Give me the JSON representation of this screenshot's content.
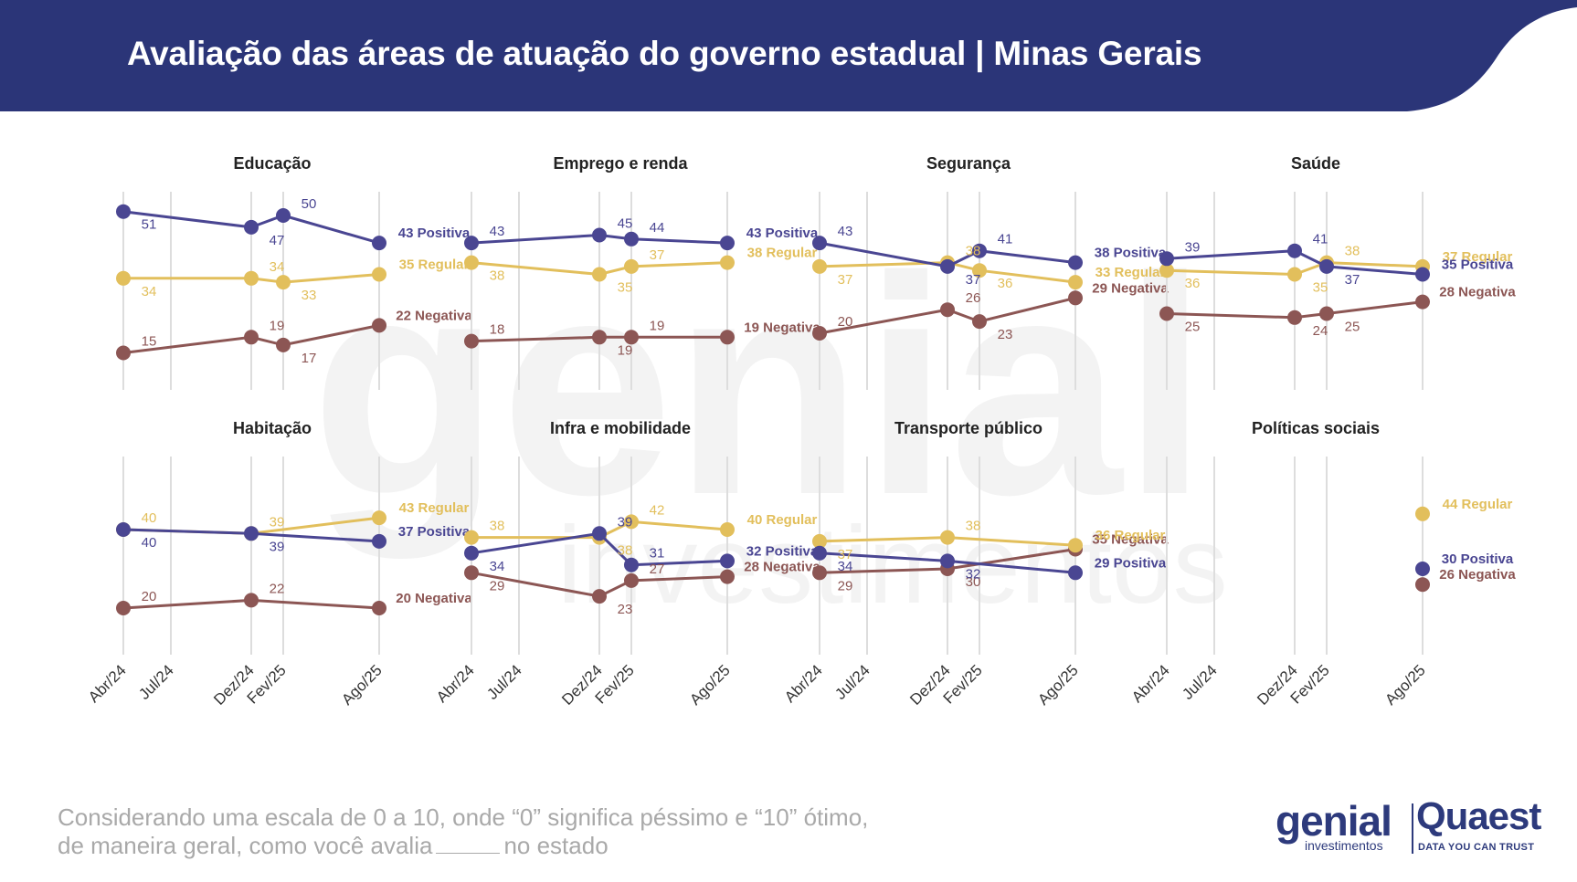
{
  "header": {
    "title": "Avaliação das áreas de atuação do governo estadual | Minas Gerais"
  },
  "footnote": {
    "line1": "Considerando uma escala de 0 a 10, onde “0” significa péssimo e “10” ótimo,",
    "line2_a": "de maneira geral, como você avalia",
    "line2_b": "no estado"
  },
  "logos": {
    "genial": "genial",
    "genial_sub": "investimentos",
    "quaest": "Quaest",
    "quaest_sub": "DATA YOU CAN TRUST"
  },
  "watermark": {
    "line1": "genial",
    "line2": "investimentos"
  },
  "colors": {
    "header_bg": "#2b3578",
    "positiva": "#4a4692",
    "regular": "#e2bf5c",
    "negativa": "#8c5654",
    "gridline": "#dddddd"
  },
  "chart_data": [
    {
      "type": "line",
      "title": "Educação",
      "x": [
        "Abr/24",
        "Jul/24",
        "Dez/24",
        "Fev/25",
        "Ago/25"
      ],
      "series": [
        {
          "name": "Positiva",
          "values": [
            51,
            null,
            47,
            50,
            43
          ]
        },
        {
          "name": "Regular",
          "values": [
            34,
            null,
            34,
            33,
            35
          ]
        },
        {
          "name": "Negativa",
          "values": [
            15,
            null,
            19,
            17,
            22
          ]
        }
      ]
    },
    {
      "type": "line",
      "title": "Emprego e renda",
      "x": [
        "Abr/24",
        "Jul/24",
        "Dez/24",
        "Fev/25",
        "Ago/25"
      ],
      "series": [
        {
          "name": "Positiva",
          "values": [
            43,
            null,
            45,
            44,
            43
          ]
        },
        {
          "name": "Regular",
          "values": [
            38,
            null,
            35,
            37,
            38
          ]
        },
        {
          "name": "Negativa",
          "values": [
            18,
            null,
            19,
            19,
            19
          ]
        }
      ]
    },
    {
      "type": "line",
      "title": "Segurança",
      "x": [
        "Abr/24",
        "Jul/24",
        "Dez/24",
        "Fev/25",
        "Ago/25"
      ],
      "series": [
        {
          "name": "Positiva",
          "values": [
            43,
            null,
            37,
            41,
            38
          ]
        },
        {
          "name": "Regular",
          "values": [
            37,
            null,
            38,
            36,
            33
          ]
        },
        {
          "name": "Negativa",
          "values": [
            20,
            null,
            26,
            23,
            29
          ]
        }
      ]
    },
    {
      "type": "line",
      "title": "Saúde",
      "x": [
        "Abr/24",
        "Jul/24",
        "Dez/24",
        "Fev/25",
        "Ago/25"
      ],
      "series": [
        {
          "name": "Positiva",
          "values": [
            39,
            null,
            41,
            37,
            35
          ]
        },
        {
          "name": "Regular",
          "values": [
            36,
            null,
            35,
            38,
            37
          ]
        },
        {
          "name": "Negativa",
          "values": [
            25,
            null,
            24,
            25,
            28
          ]
        }
      ]
    },
    {
      "type": "line",
      "title": "Habitação",
      "x": [
        "Abr/24",
        "Jul/24",
        "Dez/24",
        "Fev/25",
        "Ago/25"
      ],
      "series": [
        {
          "name": "Positiva",
          "values": [
            40,
            null,
            39,
            null,
            37
          ]
        },
        {
          "name": "Regular",
          "values": [
            40,
            null,
            39,
            null,
            43
          ]
        },
        {
          "name": "Negativa",
          "values": [
            20,
            null,
            22,
            null,
            20
          ]
        }
      ]
    },
    {
      "type": "line",
      "title": "Infra e mobilidade",
      "x": [
        "Abr/24",
        "Jul/24",
        "Dez/24",
        "Fev/25",
        "Ago/25"
      ],
      "series": [
        {
          "name": "Positiva",
          "values": [
            34,
            null,
            39,
            31,
            32
          ]
        },
        {
          "name": "Regular",
          "values": [
            38,
            null,
            38,
            42,
            40
          ]
        },
        {
          "name": "Negativa",
          "values": [
            29,
            null,
            23,
            27,
            28
          ]
        }
      ]
    },
    {
      "type": "line",
      "title": "Transporte público",
      "x": [
        "Abr/24",
        "Jul/24",
        "Dez/24",
        "Fev/25",
        "Ago/25"
      ],
      "series": [
        {
          "name": "Positiva",
          "values": [
            34,
            null,
            32,
            null,
            29
          ]
        },
        {
          "name": "Regular",
          "values": [
            37,
            null,
            38,
            null,
            36
          ]
        },
        {
          "name": "Negativa",
          "values": [
            29,
            null,
            30,
            null,
            35
          ]
        }
      ]
    },
    {
      "type": "line",
      "title": "Políticas sociais",
      "x": [
        "Abr/24",
        "Jul/24",
        "Dez/24",
        "Fev/25",
        "Ago/25"
      ],
      "series": [
        {
          "name": "Positiva",
          "values": [
            null,
            null,
            null,
            null,
            30
          ]
        },
        {
          "name": "Regular",
          "values": [
            null,
            null,
            null,
            null,
            44
          ]
        },
        {
          "name": "Negativa",
          "values": [
            null,
            null,
            null,
            null,
            26
          ]
        }
      ]
    }
  ]
}
